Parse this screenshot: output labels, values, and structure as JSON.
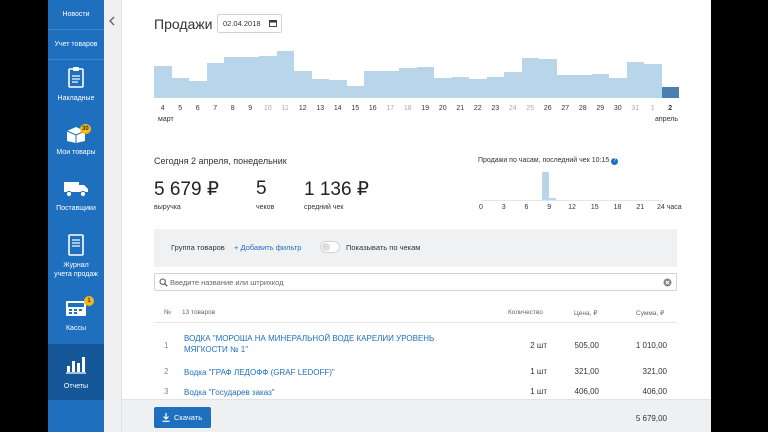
{
  "sidebar": {
    "items": [
      {
        "label": "Новости"
      },
      {
        "label": "Учет товаров"
      },
      {
        "label": "Накладные",
        "icon": "clipboard-icon"
      },
      {
        "label": "Мои товары",
        "icon": "box-icon",
        "badge": "30"
      },
      {
        "label": "Поставщики",
        "icon": "truck-icon"
      },
      {
        "label": "Журнал учета продаж",
        "label_line1": "Журнал",
        "label_line2": "учета продаж",
        "icon": "journal-icon"
      },
      {
        "label": "Кассы",
        "icon": "register-icon",
        "badge": "1"
      },
      {
        "label": "Отчеты",
        "icon": "report-icon",
        "active": true
      }
    ]
  },
  "header": {
    "title": "Продажи",
    "date": "02.04.2018"
  },
  "daily_chart": {
    "days": [
      "4",
      "5",
      "6",
      "7",
      "8",
      "9",
      "10",
      "11",
      "12",
      "13",
      "14",
      "15",
      "16",
      "17",
      "18",
      "19",
      "20",
      "21",
      "22",
      "23",
      "24",
      "25",
      "26",
      "27",
      "28",
      "29",
      "30",
      "31",
      "1",
      "2"
    ],
    "weekend": [
      0,
      0,
      0,
      0,
      0,
      0,
      1,
      1,
      0,
      0,
      0,
      0,
      0,
      1,
      1,
      0,
      0,
      0,
      0,
      0,
      1,
      1,
      0,
      0,
      0,
      0,
      0,
      1,
      1,
      0
    ],
    "relative_values": [
      0.66,
      0.42,
      0.35,
      0.72,
      0.86,
      0.86,
      0.88,
      0.97,
      0.57,
      0.4,
      0.38,
      0.25,
      0.56,
      0.57,
      0.62,
      0.64,
      0.42,
      0.44,
      0.4,
      0.44,
      0.54,
      0.83,
      0.82,
      0.48,
      0.48,
      0.5,
      0.42,
      0.75,
      0.7,
      0.22
    ],
    "selected_index": 29,
    "month_march": "март",
    "month_april": "апрель",
    "colors": {
      "bar": "#b9d5ea",
      "selected": "#4a7fb0"
    }
  },
  "summary": {
    "today": "Сегодня 2 апреля, понедельник",
    "revenue_value": "5 679 ₽",
    "revenue_label": "выручка",
    "checks_value": "5",
    "checks_label": "чеков",
    "avg_value": "1 136 ₽",
    "avg_label": "средний чек"
  },
  "hourly_chart": {
    "title": "Продажи по часам, последний чек 10:15",
    "ticks": [
      "0",
      "3",
      "6",
      "9",
      "12",
      "15",
      "18",
      "21",
      "24 часа"
    ],
    "peak_hour": 8,
    "peak_relative": 1.0,
    "second_hour": 9,
    "second_relative": 0.08
  },
  "filter": {
    "group_label": "Группа товаров",
    "add_filter": "Добавить фильтр",
    "toggle_label": "Показывать по чекам"
  },
  "search": {
    "placeholder": "Введите название или штрихкод"
  },
  "table": {
    "headers": {
      "num": "№",
      "name": "13 товаров",
      "qty": "Количество",
      "price": "Цена, ₽",
      "sum": "Сумма, ₽"
    },
    "rows": [
      {
        "num": "1",
        "name": "ВОДКА \"МОРОША НА МИНЕРАЛЬНОЙ ВОДЕ КАРЕЛИИ УРОВЕНЬ МЯГКОСТИ № 1\"",
        "qty": "2 шт",
        "price": "505,00",
        "sum": "1 010,00"
      },
      {
        "num": "2",
        "name": "Водка \"ГРАФ ЛЕДОФФ (GRAF LEDOFF)\"",
        "qty": "1 шт",
        "price": "321,00",
        "sum": "321,00"
      },
      {
        "num": "3",
        "name": "Водка \"Государев заказ\"",
        "qty": "1 шт",
        "price": "406,00",
        "sum": "406,00"
      }
    ]
  },
  "footer": {
    "download": "Скачать",
    "total": "5 679,00"
  }
}
